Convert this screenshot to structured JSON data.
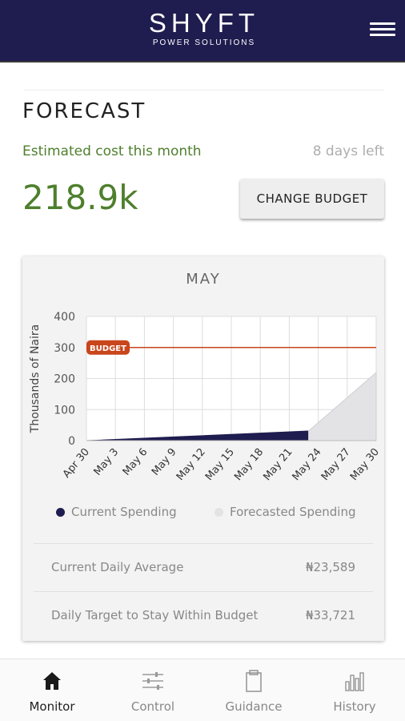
{
  "header": {
    "logo_main": "SHYFT",
    "logo_sub": "POWER SOLUTIONS",
    "menu_icon": "hamburger-menu-icon"
  },
  "forecast": {
    "title": "FORECAST",
    "estimated_label": "Estimated cost this month",
    "days_left": "8 days left",
    "cost_value": "218.9k",
    "change_budget_label": "CHANGE BUDGET"
  },
  "chart_card": {
    "title": "MAY",
    "legend": {
      "current": "Current Spending",
      "forecasted": "Forecasted Spending"
    },
    "stats": [
      {
        "label": "Current Daily Average",
        "value": "₦23,589"
      },
      {
        "label": "Daily Target to Stay Within Budget",
        "value": "₦33,721"
      }
    ]
  },
  "chart_data": {
    "type": "area",
    "title": "MAY",
    "ylabel": "Thousands of Naira",
    "xlabel": "",
    "ylim": [
      0,
      400
    ],
    "yticks": [
      0,
      100,
      200,
      300,
      400
    ],
    "x_tick_labels": [
      "Apr 30",
      "May 3",
      "May 6",
      "May 9",
      "May 12",
      "May 15",
      "May 18",
      "May 21",
      "May 24",
      "May 27",
      "May 30"
    ],
    "x_range_days": [
      0,
      30
    ],
    "budget": {
      "label": "BUDGET",
      "value": 300
    },
    "series": [
      {
        "name": "Current Spending",
        "points": [
          [
            0,
            0
          ],
          [
            1,
            1
          ],
          [
            23,
            31
          ]
        ]
      },
      {
        "name": "Forecasted Spending",
        "points": [
          [
            23,
            31
          ],
          [
            30,
            219
          ]
        ]
      }
    ],
    "grid": true,
    "legend_position": "bottom",
    "colors": {
      "current": "#1f1c4f",
      "forecasted": "#e3e3e6",
      "budget": "#c9451c",
      "grid": "#dddddd"
    }
  },
  "nav": {
    "items": [
      {
        "label": "Monitor",
        "icon": "home-icon",
        "active": true
      },
      {
        "label": "Control",
        "icon": "sliders-icon",
        "active": false
      },
      {
        "label": "Guidance",
        "icon": "clipboard-icon",
        "active": false
      },
      {
        "label": "History",
        "icon": "bar-chart-icon",
        "active": false
      }
    ]
  },
  "colors": {
    "header_bg": "#1f1c4f",
    "accent_green": "#4e7f2c",
    "budget_red": "#c9451c"
  }
}
